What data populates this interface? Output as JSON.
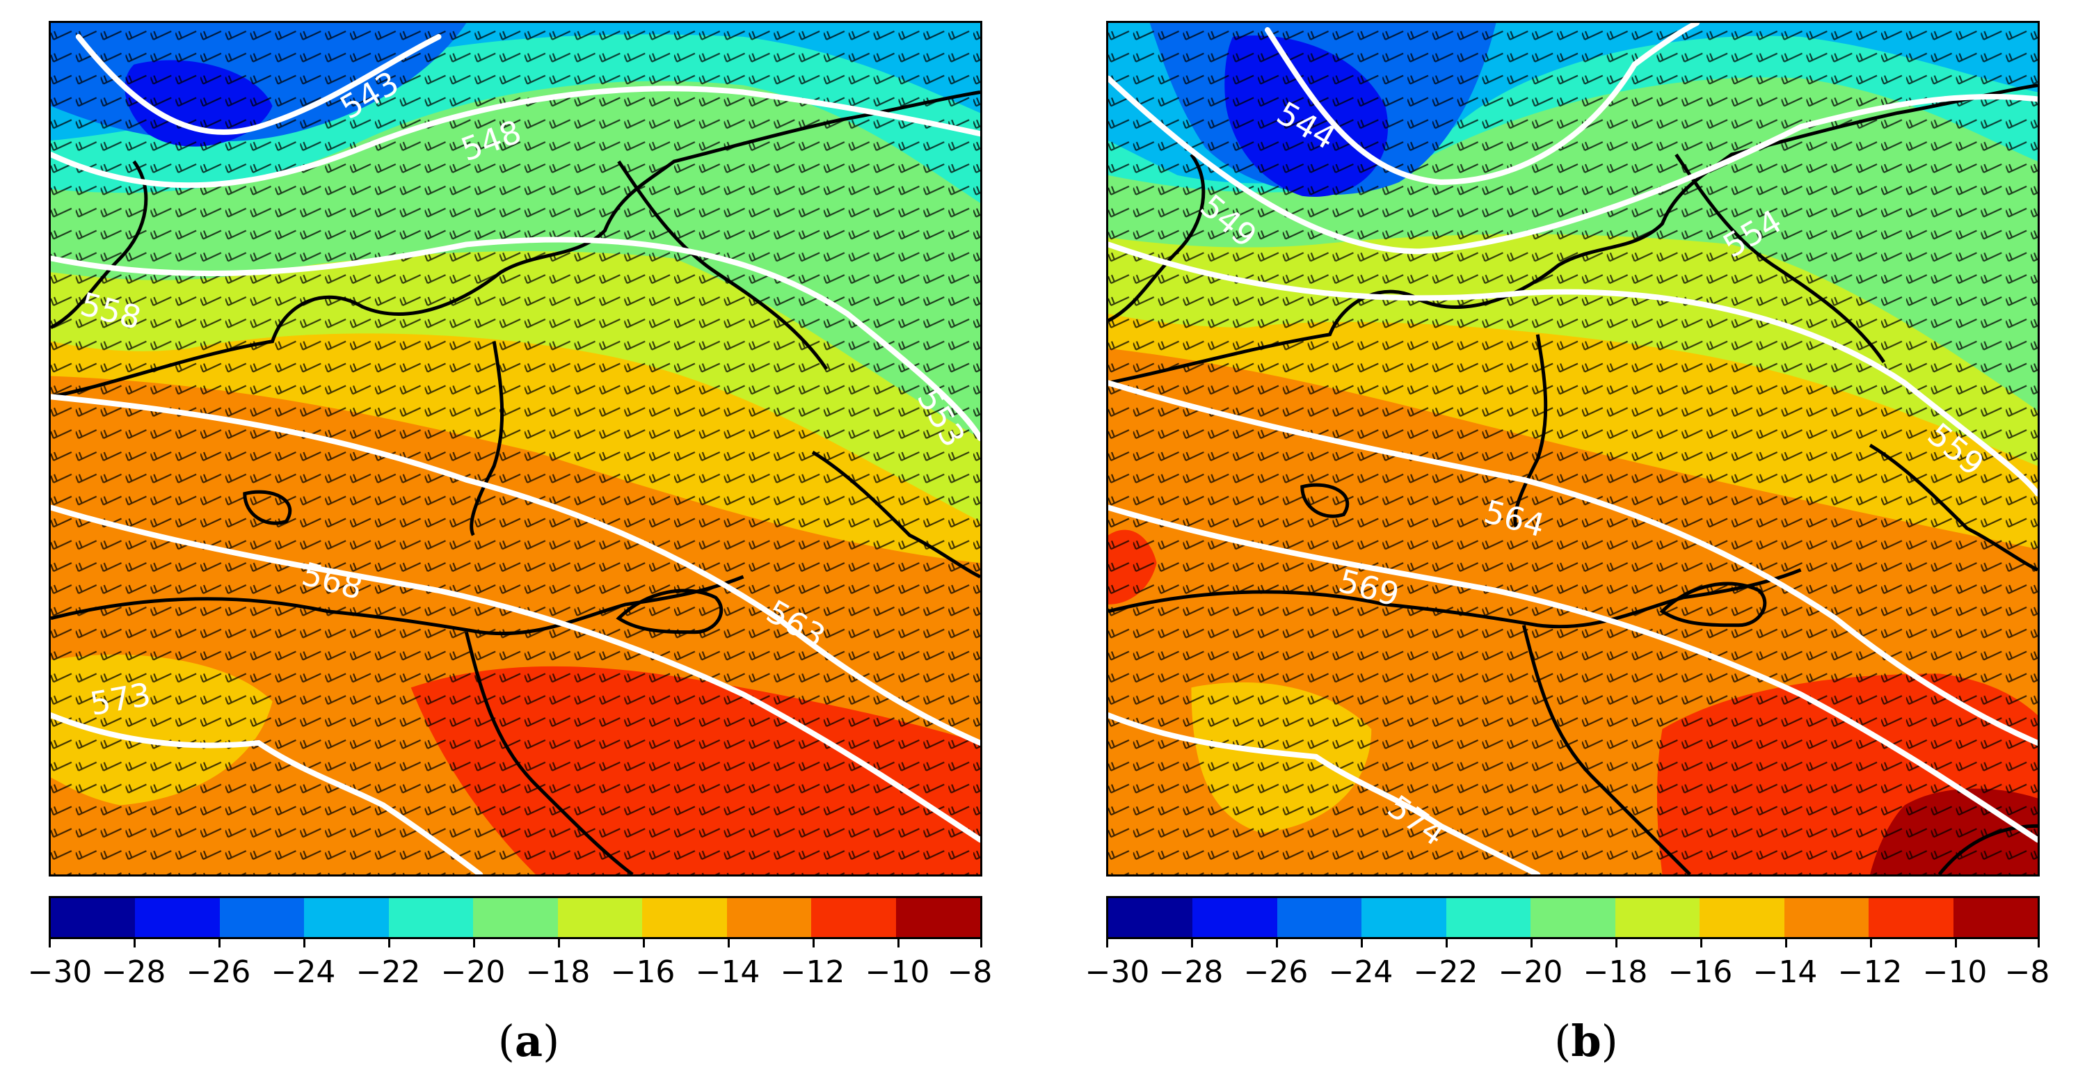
{
  "colorbar": {
    "colors": [
      "#00009c",
      "#0010f0",
      "#0068f0",
      "#00b8f0",
      "#28f0c8",
      "#78f078",
      "#c8f028",
      "#f8c800",
      "#f88800",
      "#f83000",
      "#a80000"
    ],
    "ticks": [
      "−30",
      "−28",
      "−26",
      "−24",
      "−22",
      "−20",
      "−18",
      "−16",
      "−14",
      "−12",
      "−10",
      "−8"
    ]
  },
  "panels": [
    {
      "id": "a",
      "label_letter": "a",
      "label_open": "(",
      "label_close": ")",
      "contour_labels": [
        "543",
        "548",
        "558",
        "553",
        "568",
        "563",
        "573"
      ]
    },
    {
      "id": "b",
      "label_letter": "b",
      "label_open": "(",
      "label_close": ")",
      "contour_labels": [
        "544",
        "549",
        "554",
        "559",
        "564",
        "569",
        "574"
      ]
    }
  ]
}
